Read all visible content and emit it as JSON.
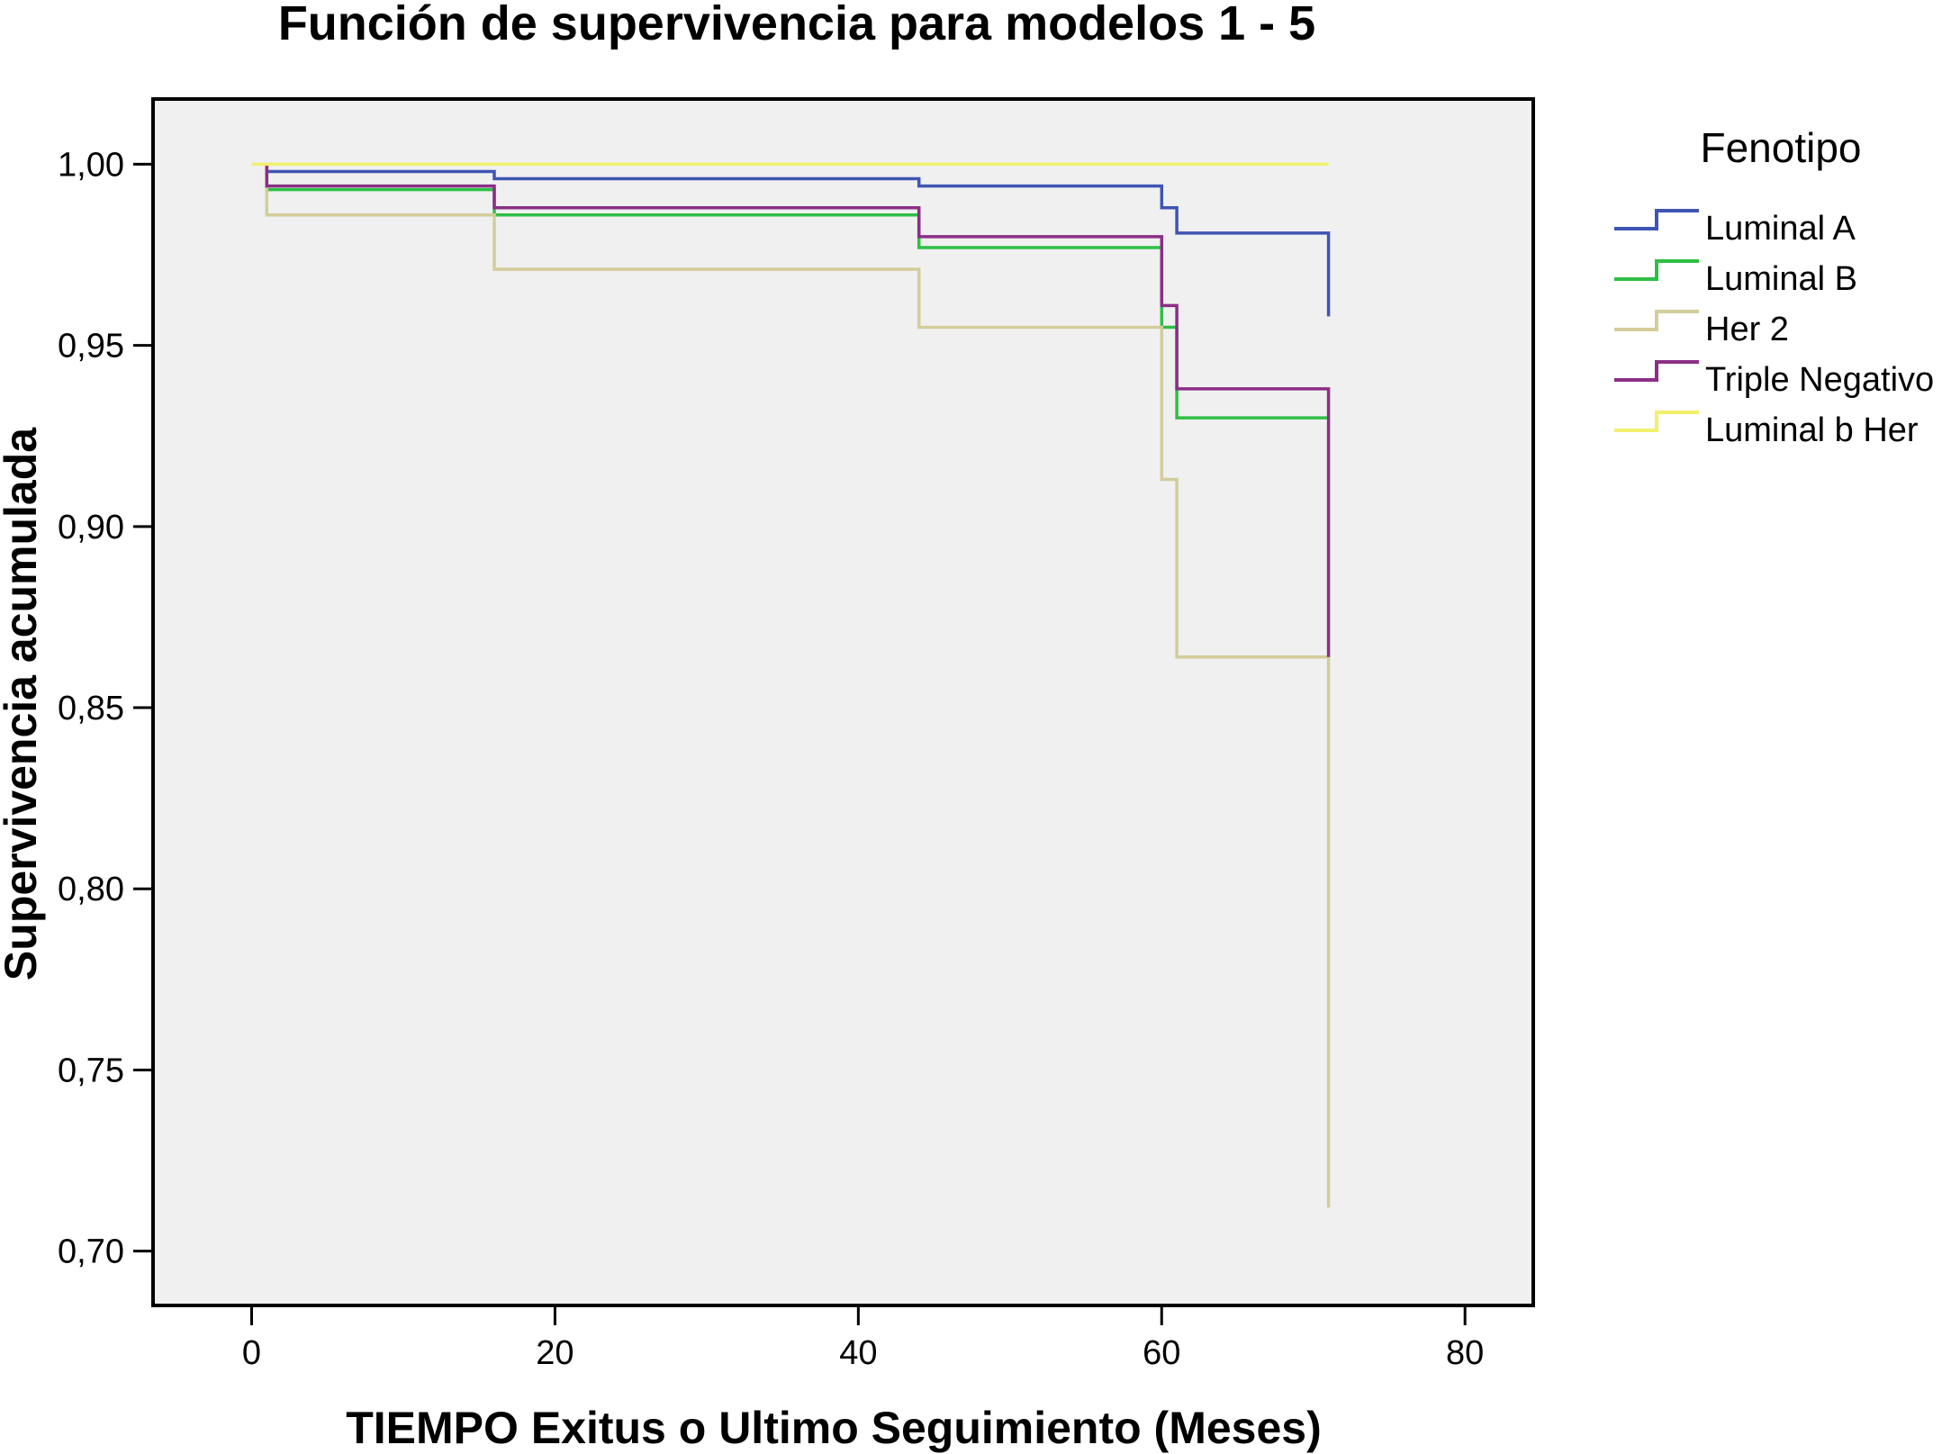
{
  "chart_data": {
    "type": "line",
    "title": "Función de supervivencia para modelos 1 - 5",
    "xlabel": "TIEMPO Exitus o Ultimo Seguimiento (Meses)",
    "ylabel": "Supervivencia acumulada",
    "xlim": [
      -6.5,
      84.5
    ],
    "ylim": [
      0.685,
      1.018
    ],
    "xticks": [
      0,
      20,
      40,
      60,
      80
    ],
    "xtick_labels": [
      "0",
      "20",
      "40",
      "60",
      "80"
    ],
    "yticks": [
      0.7,
      0.75,
      0.8,
      0.85,
      0.9,
      0.95,
      1.0
    ],
    "ytick_labels": [
      "0,70",
      "0,75",
      "0,80",
      "0,85",
      "0,90",
      "0,95",
      "1,00"
    ],
    "grid": false,
    "step": true,
    "plot_background": "#f0f0f0",
    "legend": {
      "title": "Fenotipo",
      "placement": "right"
    },
    "series": [
      {
        "name": "Luminal A",
        "color": "#3f55b3",
        "x": [
          1,
          1,
          16,
          44,
          60,
          61,
          71,
          71
        ],
        "y": [
          1.0,
          0.998,
          0.996,
          0.994,
          0.988,
          0.981,
          0.981,
          0.958
        ]
      },
      {
        "name": "Luminal B",
        "color": "#2fbf47",
        "x": [
          1,
          16,
          44,
          60,
          61,
          71,
          71
        ],
        "y": [
          0.993,
          0.986,
          0.977,
          0.955,
          0.93,
          0.93,
          0.93
        ]
      },
      {
        "name": "Her 2",
        "color": "#d3cd9a",
        "x": [
          1,
          16,
          44,
          60,
          61,
          71,
          71
        ],
        "y": [
          0.986,
          0.971,
          0.955,
          0.913,
          0.864,
          0.864,
          0.712
        ]
      },
      {
        "name": "Triple Negativo",
        "color": "#8b2f86",
        "x": [
          1,
          16,
          44,
          60,
          61,
          71,
          71
        ],
        "y": [
          0.994,
          0.988,
          0.98,
          0.961,
          0.938,
          0.938,
          0.864
        ]
      },
      {
        "name": "Luminal b Her",
        "color": "#f2ef6b",
        "x": [
          0,
          71
        ],
        "y": [
          1.0,
          1.0
        ]
      }
    ]
  }
}
